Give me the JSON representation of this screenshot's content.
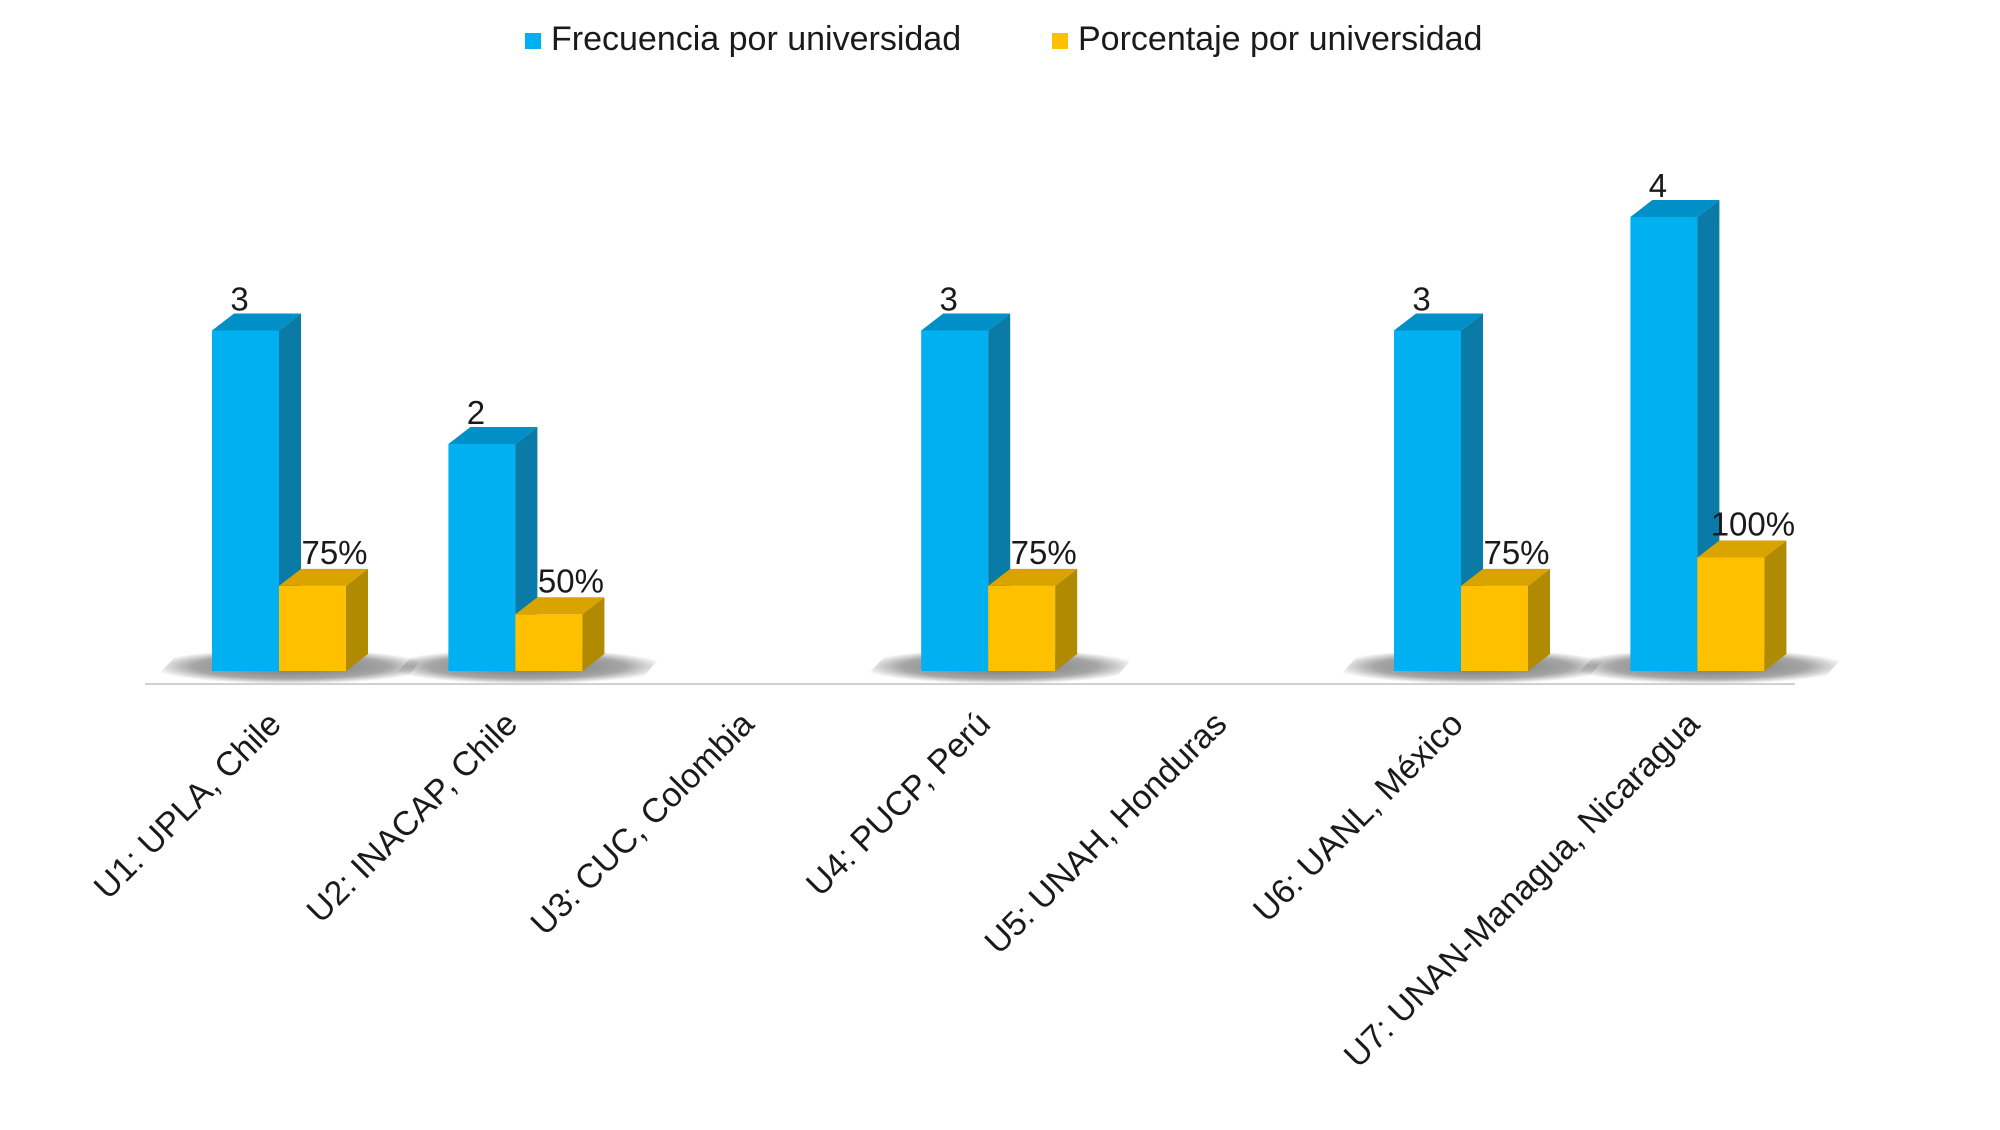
{
  "chart_data": {
    "type": "bar",
    "title": "",
    "xlabel": "",
    "ylabel": "",
    "ylim": [
      0,
      5
    ],
    "grid": false,
    "legend_position": "top-center",
    "categories": [
      "U1: UPLA, Chile",
      "U2: INACAP, Chile",
      "U3: CUC, Colombia",
      "U4: PUCP, Perú",
      "U5: UNAH, Honduras",
      "U6: UANL, México",
      "U7: UNAN-Managua, Nicaragua"
    ],
    "series": [
      {
        "name": "Frecuencia por universidad",
        "color": "#00B0F0",
        "side_color": "#0A7AA6",
        "top_color": "#0090C8",
        "values": [
          3,
          2,
          0,
          3,
          0,
          3,
          4
        ],
        "labels": [
          "3",
          "2",
          "",
          "3",
          "",
          "3",
          "4"
        ]
      },
      {
        "name": "Porcentaje por universidad",
        "color": "#FFC000",
        "side_color": "#B08A00",
        "top_color": "#D9A300",
        "values": [
          0.75,
          0.5,
          0,
          0.75,
          0,
          0.75,
          1.0
        ],
        "labels": [
          "75%",
          "50%",
          "",
          "75%",
          "",
          "75%",
          "100%"
        ]
      }
    ]
  }
}
